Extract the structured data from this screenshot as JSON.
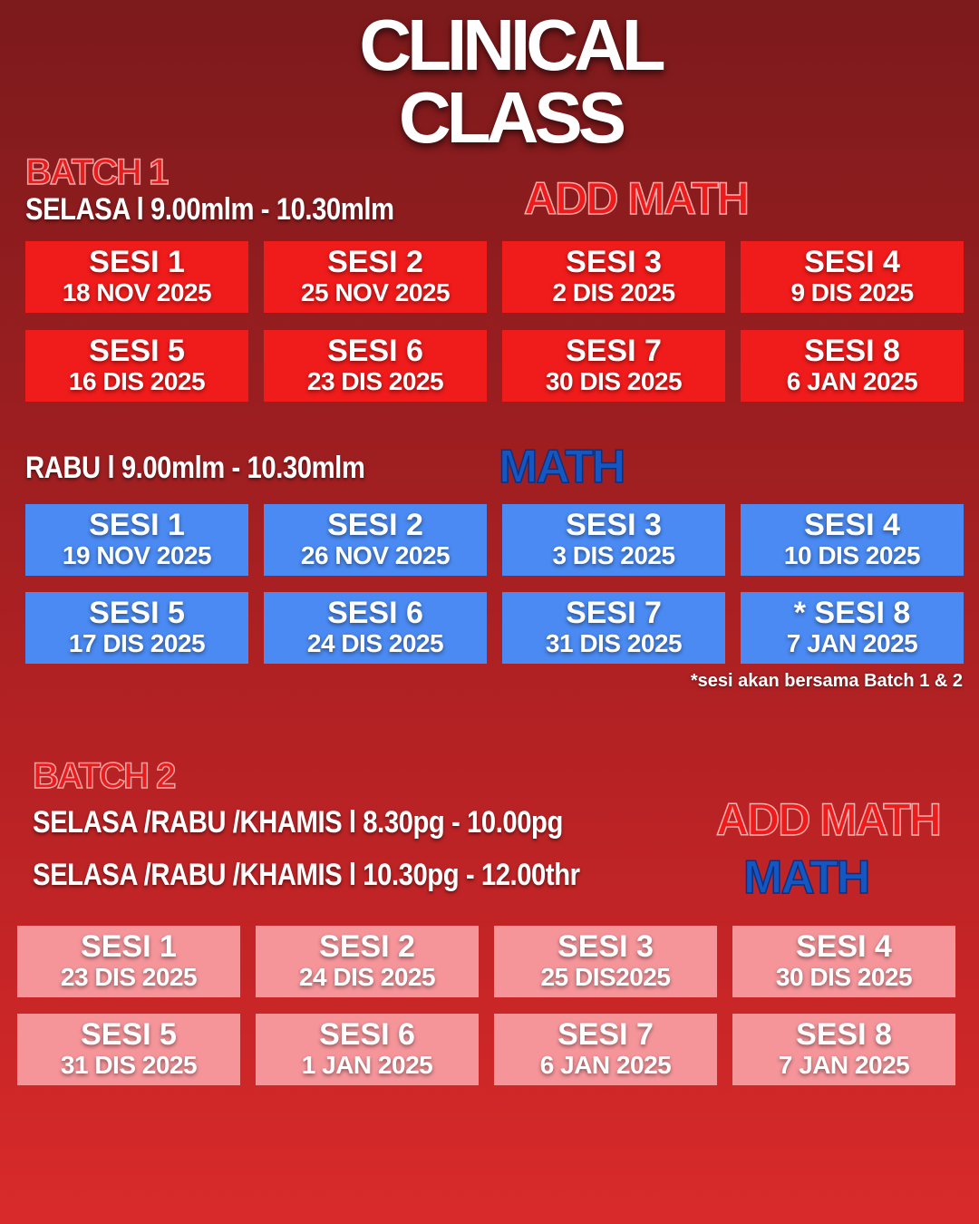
{
  "title": {
    "line1": "CLINICAL",
    "line2": "CLASS"
  },
  "colors": {
    "card_batch1_addmath": "#f01b1b",
    "card_batch1_math": "#4a8af2",
    "card_batch2": "#f5959a",
    "add_math_label": "#ee1b1b",
    "math_label": "#1557c0"
  },
  "batch1": {
    "label": "BATCH 1",
    "addmath": {
      "schedule": "SELASA l 9.00mlm - 10.30mlm",
      "subject": "ADD MATH",
      "sessions": [
        {
          "s": "SESI 1",
          "d": "18 NOV 2025"
        },
        {
          "s": "SESI 2",
          "d": "25 NOV 2025"
        },
        {
          "s": "SESI 3",
          "d": "2 DIS 2025"
        },
        {
          "s": "SESI 4",
          "d": "9 DIS 2025"
        },
        {
          "s": "SESI 5",
          "d": "16 DIS 2025"
        },
        {
          "s": "SESI 6",
          "d": "23 DIS 2025"
        },
        {
          "s": "SESI 7",
          "d": "30 DIS 2025"
        },
        {
          "s": "SESI 8",
          "d": "6 JAN 2025"
        }
      ]
    },
    "math": {
      "schedule": "RABU l 9.00mlm - 10.30mlm",
      "subject": "MATH",
      "sessions": [
        {
          "s": "SESI 1",
          "d": "19 NOV 2025"
        },
        {
          "s": "SESI 2",
          "d": "26 NOV 2025"
        },
        {
          "s": "SESI 3",
          "d": "3 DIS 2025"
        },
        {
          "s": "SESI 4",
          "d": "10 DIS 2025"
        },
        {
          "s": "SESI 5",
          "d": "17 DIS 2025"
        },
        {
          "s": "SESI 6",
          "d": "24 DIS 2025"
        },
        {
          "s": "SESI 7",
          "d": "31 DIS 2025"
        },
        {
          "s": "*  SESI 8",
          "d": "7 JAN 2025"
        }
      ]
    },
    "note": "*sesi  akan bersama Batch 1 & 2"
  },
  "batch2": {
    "label": "BATCH 2",
    "addmath": {
      "schedule": "SELASA /RABU /KHAMIS l 8.30pg - 10.00pg",
      "subject": "ADD MATH"
    },
    "math": {
      "schedule": "SELASA /RABU /KHAMIS l 10.30pg - 12.00thr",
      "subject": "MATH"
    },
    "sessions": [
      {
        "s": "SESI 1",
        "d": "23 DIS 2025"
      },
      {
        "s": "SESI 2",
        "d": "24 DIS 2025"
      },
      {
        "s": "SESI 3",
        "d": "25 DIS2025"
      },
      {
        "s": "SESI 4",
        "d": "30 DIS 2025"
      },
      {
        "s": "SESI 5",
        "d": "31 DIS 2025"
      },
      {
        "s": "SESI 6",
        "d": "1 JAN 2025"
      },
      {
        "s": "SESI 7",
        "d": "6 JAN 2025"
      },
      {
        "s": "SESI 8",
        "d": "7 JAN 2025"
      }
    ]
  }
}
